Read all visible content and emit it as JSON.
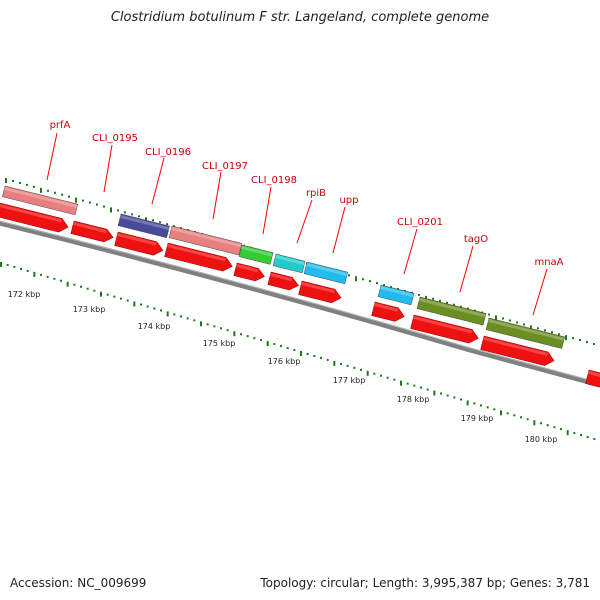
{
  "title": "Clostridium botulinum F str. Langeland, complete genome",
  "footer": {
    "accession": "Accession: NC_009699",
    "summary": "Topology: circular; Length: 3,995,387 bp; Genes: 3,781"
  },
  "colors": {
    "backbone": "#808080",
    "tick": "#1a7a1a",
    "label_line": "#ff0000",
    "label_text": "#cc0000",
    "cds": "#ee1111",
    "ribosomal_pink": "#e88080",
    "navy": "#4a4a9a",
    "green": "#33cc33",
    "teal": "#22cccc",
    "cyan": "#22bbee",
    "olive": "#6b8e23"
  },
  "kbp_labels": [
    "172 kbp",
    "173 kbp",
    "174 kbp",
    "175 kbp",
    "176 kbp",
    "177 kbp",
    "178 kbp",
    "179 kbp",
    "180 kbp"
  ],
  "gene_labels": [
    "prfA",
    "CLI_0195",
    "CLI_0196",
    "CLI_0197",
    "CLI_0198",
    "rpiB",
    "upp",
    "CLI_0201",
    "tagO",
    "mnaA"
  ]
}
